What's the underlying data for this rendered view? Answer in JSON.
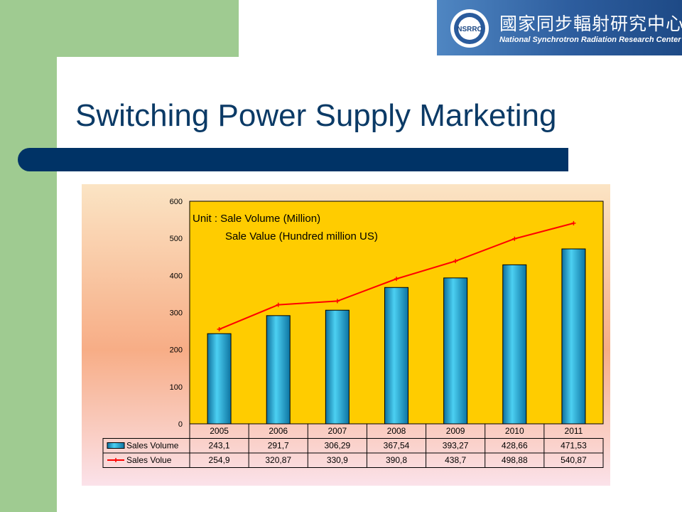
{
  "slide": {
    "title": "Switching Power Supply Marketing"
  },
  "logo": {
    "seal_text": "NSRRC",
    "chinese_name": "國家同步輻射研究中心",
    "english_name": "National Synchrotron Radiation Research Center"
  },
  "chart_data": {
    "type": "bar",
    "categories": [
      "2005",
      "2006",
      "2007",
      "2008",
      "2009",
      "2010",
      "2011"
    ],
    "series": [
      {
        "name": "Sales Volume",
        "type": "bar",
        "values": [
          243.1,
          291.7,
          306.29,
          367.54,
          393.27,
          428.66,
          471.53
        ],
        "labels": [
          "243,1",
          "291,7",
          "306,29",
          "367,54",
          "393,27",
          "428,66",
          "471,53"
        ],
        "color": "#1ba6cf"
      },
      {
        "name": "Sales Volue",
        "type": "line",
        "values": [
          254.9,
          320.87,
          330.9,
          390.8,
          438.7,
          498.88,
          540.87
        ],
        "labels": [
          "254,9",
          "320,87",
          "330,9",
          "390,8",
          "438,7",
          "498,88",
          "540,87"
        ],
        "color": "#ff0000"
      }
    ],
    "annotation_lines": [
      "Unit :  Sale Volume (Million)",
      "Sale Value (Hundred million US)"
    ],
    "y_ticks": [
      "0",
      "100",
      "200",
      "300",
      "400",
      "500",
      "600"
    ],
    "ylim": [
      0,
      600
    ],
    "grid": false,
    "legend": "data-table",
    "plot_color": "#ffcc00"
  }
}
